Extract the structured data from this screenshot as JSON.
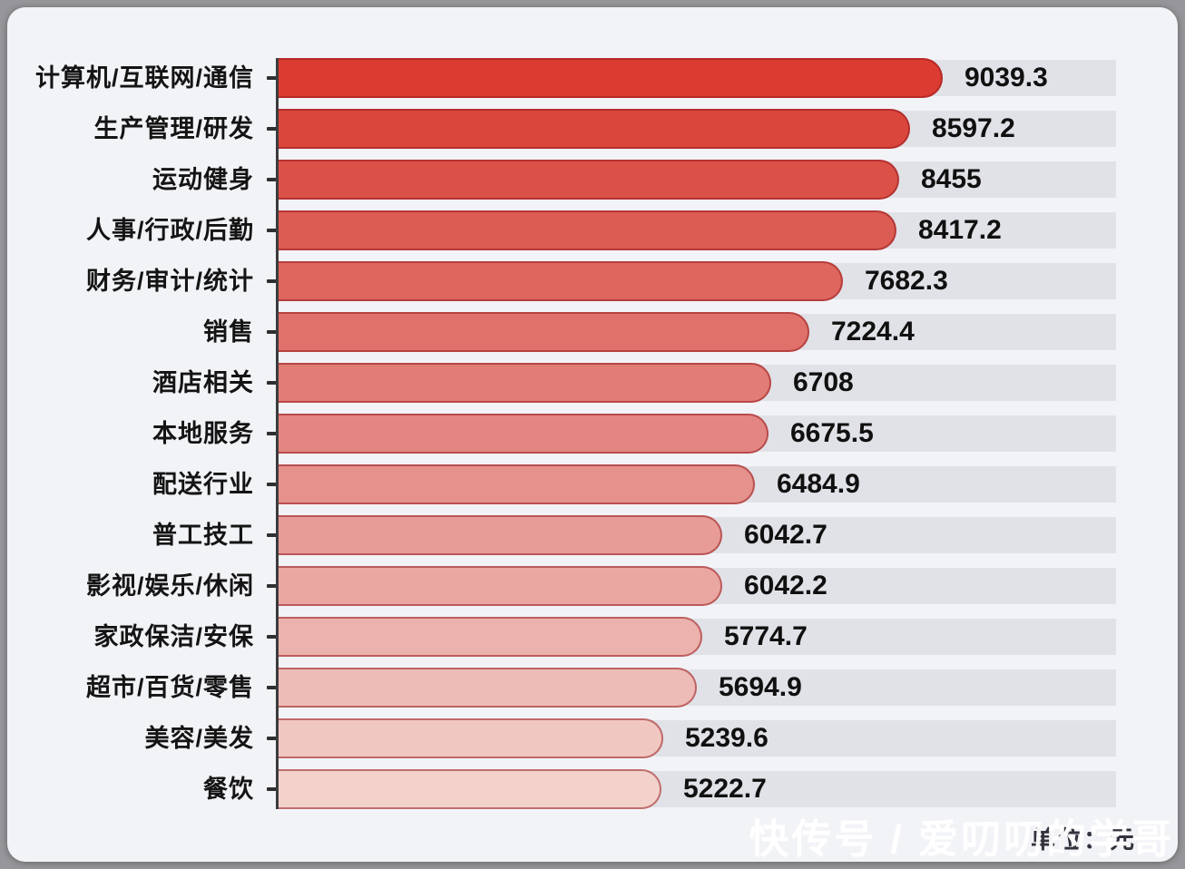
{
  "page": {
    "background": "#97979b",
    "card_background": "#f2f3f7"
  },
  "chart_data": {
    "type": "bar",
    "orientation": "horizontal",
    "title": "",
    "unit_label": "单位：元",
    "categories": [
      "计算机/互联网/通信",
      "生产管理/研发",
      "运动健身",
      "人事/行政/后勤",
      "财务/审计/统计",
      "销售",
      "酒店相关",
      "本地服务",
      "配送行业",
      "普工技工",
      "影视/娱乐/休闲",
      "家政保洁/安保",
      "超市/百货/零售",
      "美容/美发",
      "餐饮"
    ],
    "values": [
      9039.3,
      8597.2,
      8455,
      8417.2,
      7682.3,
      7224.4,
      6708,
      6675.5,
      6484.9,
      6042.7,
      6042.2,
      5774.7,
      5694.9,
      5239.6,
      5222.7
    ],
    "value_labels": [
      "9039.3",
      "8597.2",
      "8455",
      "8417.2",
      "7682.3",
      "7224.4",
      "6708",
      "6675.5",
      "6484.9",
      "6042.7",
      "6042.2",
      "5774.7",
      "5694.9",
      "5239.6",
      "5222.7"
    ],
    "bar_colors": [
      "#db3b31",
      "#da463c",
      "#db5148",
      "#dc5b52",
      "#de665e",
      "#e0716a",
      "#e27c76",
      "#e38681",
      "#e5918c",
      "#e79c97",
      "#eaa7a2",
      "#ecb2ad",
      "#eebcb7",
      "#f1c7c2",
      "#f3d2cc"
    ],
    "bar_border_color": "rgba(150,28,32,0.55)",
    "track_color": "#e0e2e7",
    "axis_color": "#3c3c3e",
    "tick_color": "#2f2f2f",
    "label_color": "#141414",
    "value_color": "#101010",
    "xlim": [
      0,
      11400
    ],
    "grid": false,
    "legend": false
  },
  "watermark": {
    "text": "快传号 / 爱叨叨的学哥",
    "color": "rgba(255,255,255,0.95)"
  }
}
